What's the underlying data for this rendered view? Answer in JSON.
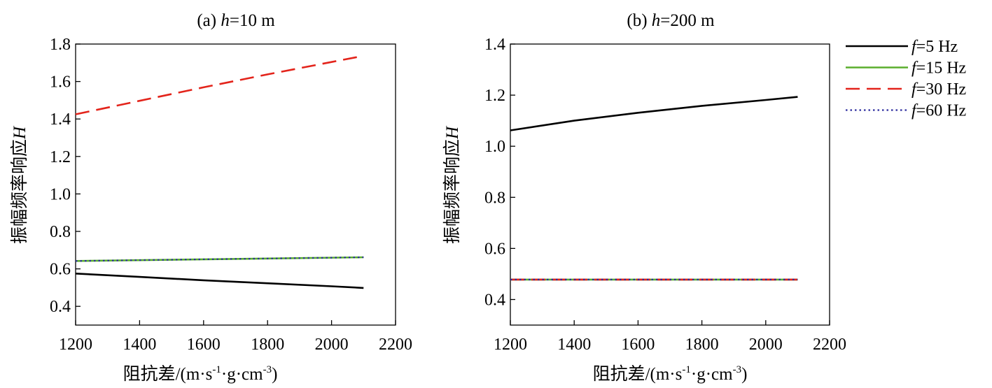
{
  "legend": [
    {
      "italic": "f",
      "text": "=5 Hz",
      "color": "#000000",
      "dash": "solid"
    },
    {
      "italic": "f",
      "text": "=15 Hz",
      "color": "#5aae2d",
      "dash": "solid"
    },
    {
      "italic": "f",
      "text": "=30 Hz",
      "color": "#e3241b",
      "dash": "dashed"
    },
    {
      "italic": "f",
      "text": "=60 Hz",
      "color": "#2c2c9e",
      "dash": "dotted"
    }
  ],
  "chart_data": [
    {
      "type": "line",
      "title_prefix": "(a)  ",
      "title_italic": "h",
      "title_suffix": "=10 m",
      "xlabel_main": "阻抗差/(m·s",
      "xlabel_sup1": "-1",
      "xlabel_mid": "·g·cm",
      "xlabel_sup2": "-3",
      "xlabel_end": ")",
      "ylabel_main": "振幅频率响应",
      "ylabel_italic": "H",
      "xlim": [
        1200,
        2200
      ],
      "ylim": [
        0.3,
        1.8
      ],
      "xticks": [
        1200,
        1400,
        1600,
        1800,
        2000,
        2200
      ],
      "xtick_labels": [
        "1200",
        "1400",
        "1600",
        "1800",
        "2000",
        "2200"
      ],
      "yticks": [
        0.4,
        0.6,
        0.8,
        1.0,
        1.2,
        1.4,
        1.6,
        1.8
      ],
      "ytick_labels": [
        "0.4",
        "0.6",
        "0.8",
        "1.0",
        "1.2",
        "1.4",
        "1.6",
        "1.8"
      ],
      "series": [
        {
          "x": [
            1200,
            1400,
            1600,
            1800,
            2000,
            2100
          ],
          "y": [
            0.575,
            0.557,
            0.539,
            0.523,
            0.507,
            0.498
          ]
        },
        {
          "x": [
            1200,
            2100
          ],
          "y": [
            0.642,
            0.662
          ]
        },
        {
          "x": [
            1200,
            1400,
            1600,
            1800,
            2000,
            2100
          ],
          "y": [
            1.425,
            1.497,
            1.569,
            1.638,
            1.704,
            1.737
          ]
        },
        {
          "x": [
            1200,
            2100
          ],
          "y": [
            0.642,
            0.662
          ]
        }
      ]
    },
    {
      "type": "line",
      "title_prefix": "(b)  ",
      "title_italic": "h",
      "title_suffix": "=200 m",
      "xlabel_main": "阻抗差/(m·s",
      "xlabel_sup1": "-1",
      "xlabel_mid": "·g·cm",
      "xlabel_sup2": "-3",
      "xlabel_end": ")",
      "ylabel_main": "振幅频率响应",
      "ylabel_italic": "H",
      "xlim": [
        1200,
        2200
      ],
      "ylim": [
        0.3,
        1.4
      ],
      "xticks": [
        1200,
        1400,
        1600,
        1800,
        2000,
        2200
      ],
      "xtick_labels": [
        "1200",
        "1400",
        "1600",
        "1800",
        "2000",
        "2200"
      ],
      "yticks": [
        0.4,
        0.6,
        0.8,
        1.0,
        1.2,
        1.4
      ],
      "ytick_labels": [
        "0.4",
        "0.6",
        "0.8",
        "1.0",
        "1.2",
        "1.4"
      ],
      "series": [
        {
          "x": [
            1200,
            1400,
            1600,
            1800,
            2000,
            2100
          ],
          "y": [
            1.062,
            1.1,
            1.131,
            1.158,
            1.181,
            1.193
          ]
        },
        {
          "x": [
            1200,
            2100
          ],
          "y": [
            0.478,
            0.478
          ]
        },
        {
          "x": [
            1200,
            2100
          ],
          "y": [
            0.478,
            0.478
          ]
        },
        {
          "x": [
            1200,
            2100
          ],
          "y": [
            0.478,
            0.478
          ]
        }
      ]
    }
  ]
}
